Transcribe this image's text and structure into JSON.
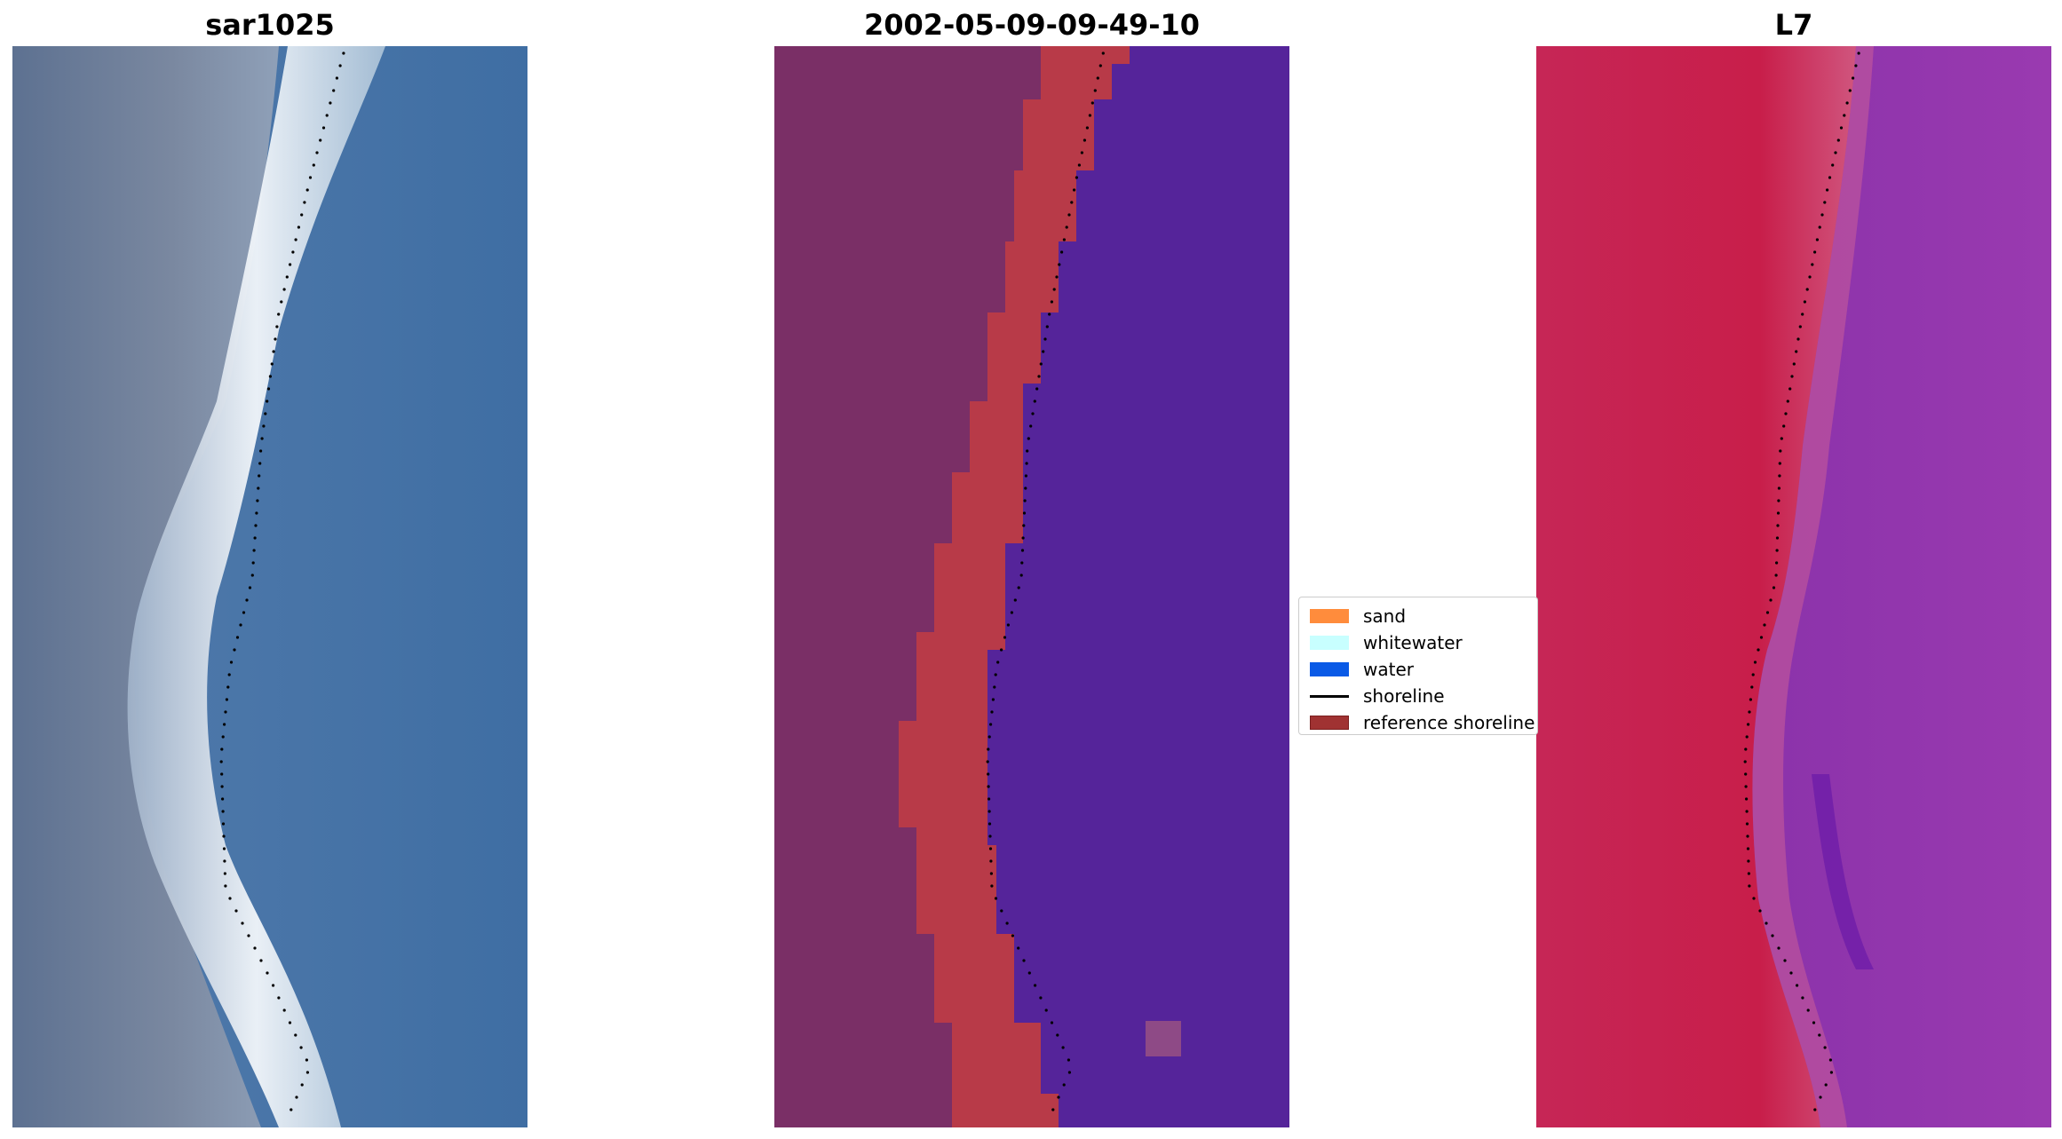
{
  "panels": [
    {
      "title": "sar1025",
      "layer": "rgb"
    },
    {
      "title": "2002-05-09-09-49-10",
      "layer": "classified"
    },
    {
      "title": "L7",
      "layer": "index"
    }
  ],
  "legend": {
    "items": [
      {
        "label": "sand",
        "color": "#ff8c3c",
        "kind": "patch"
      },
      {
        "label": "whitewater",
        "color": "#c8ffff",
        "kind": "patch"
      },
      {
        "label": "water",
        "color": "#0a5ae6",
        "kind": "patch"
      },
      {
        "label": "shoreline",
        "color": "#000000",
        "kind": "line"
      },
      {
        "label": "reference shoreline",
        "color": "#a03232",
        "kind": "patch"
      }
    ]
  },
  "colors": {
    "rgb_water": "#4a74a6",
    "rgb_whitewater": "#eef4f8",
    "rgb_land": "#6d7f9c",
    "classified_land": "#7a2f66",
    "classified_sand": "#b83a48",
    "classified_water": "#55249a",
    "index_land": "#c8204d",
    "index_water": "#8a2ea6",
    "shoreline_dots": "#000000"
  }
}
